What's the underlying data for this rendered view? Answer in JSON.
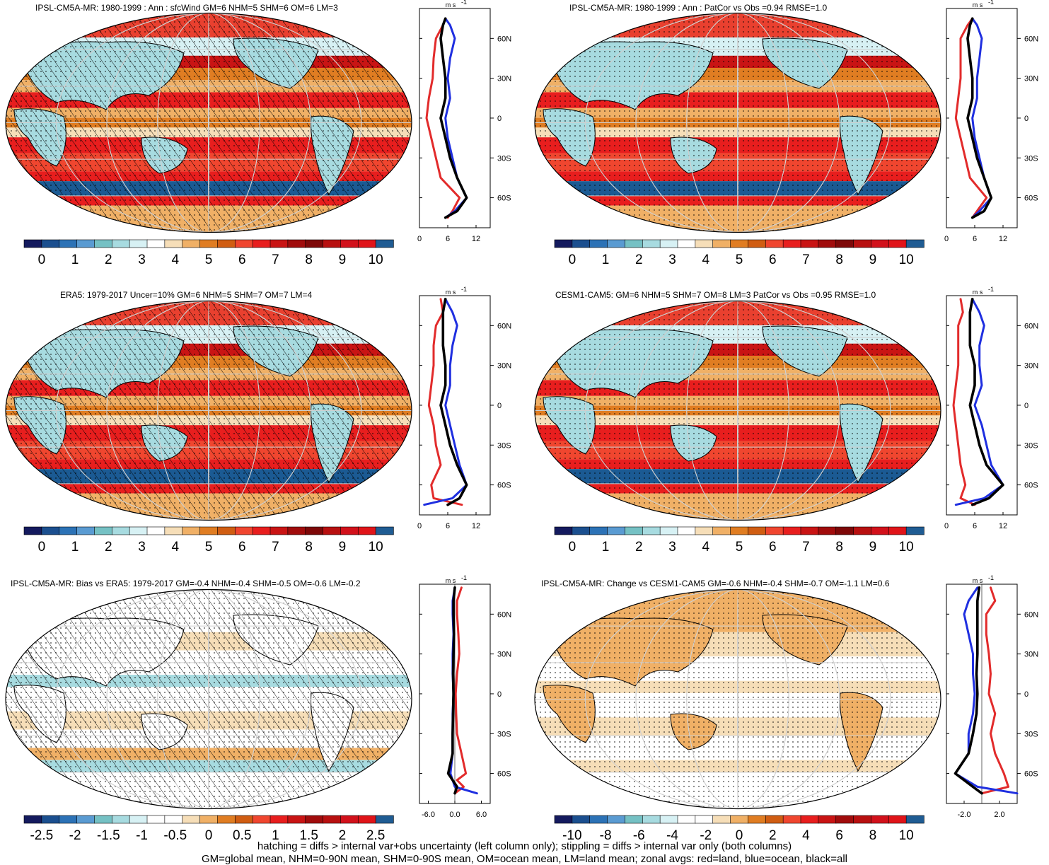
{
  "colors": {
    "wind_scale": [
      "#141a5e",
      "#1b4f8f",
      "#2c72b6",
      "#5a9bd2",
      "#75c1c4",
      "#a7dbe0",
      "#d7f1f4",
      "#ffffff",
      "#f6deb8",
      "#f0b066",
      "#e07d22",
      "#d05d12",
      "#f0462f",
      "#e81e1e",
      "#c91414",
      "#a10c0c",
      "#7e0808",
      "#b81010",
      "#d2111b",
      "#e01419",
      "#1f5c93"
    ],
    "diff_scale": [
      "#141a5e",
      "#1b4f8f",
      "#2c72b6",
      "#5a9bd2",
      "#75c1c4",
      "#a7dbe0",
      "#d7f1f4",
      "#ffffff",
      "#ffffff",
      "#f6deb8",
      "#f0b066",
      "#e07d22",
      "#d05d12",
      "#f0462f",
      "#e81e1e",
      "#c91414",
      "#a10c0c",
      "#b81010",
      "#d2111b",
      "#e01419",
      "#1f5c93"
    ],
    "land": "#e22b2b",
    "ocean": "#1f2fe0",
    "all": "#000000"
  },
  "panels": [
    {
      "title": "IPSL-CM5A-MR: 1980-1999 : Ann : sfcWind GM=6 NHM=5 SHM=6 OM=6 LM=3",
      "unit": "m s",
      "unit_sup": "-1",
      "colorbar_labels": [
        "0",
        "1",
        "2",
        "3",
        "4",
        "5",
        "6",
        "7",
        "8",
        "9",
        "10"
      ],
      "profile_ticks": [
        "0",
        "6",
        "12"
      ],
      "lat_labels": [
        "60N",
        "30N",
        "0",
        "30S",
        "60S"
      ],
      "hatched": true,
      "map_style": "clim",
      "chart_data": {
        "type": "line",
        "title": "IPSL-CM5A-MR: 1980-1999 : Ann : sfcWind GM=6 NHM=5 SHM=6 OM=6 LM=3",
        "xlim": [
          0,
          15
        ],
        "lat": [
          75,
          70,
          60,
          45,
          30,
          15,
          0,
          -15,
          -30,
          -45,
          -60,
          -70,
          -75
        ],
        "series": [
          {
            "values": [
              5.5,
              5.0,
              3.5,
              3.0,
              2.8,
              2.0,
              1.5,
              2.5,
              3.5,
              4.5,
              8.5,
              7.0,
              6.0
            ]
          },
          {
            "values": [
              5.5,
              6.5,
              7.5,
              6.5,
              6.0,
              6.5,
              5.5,
              6.0,
              7.0,
              8.0,
              10.0,
              7.5,
              5.5
            ]
          },
          {
            "values": [
              5.5,
              5.0,
              4.5,
              5.0,
              5.5,
              5.5,
              4.5,
              5.5,
              6.5,
              8.0,
              10.0,
              8.0,
              5.5
            ]
          }
        ]
      }
    },
    {
      "title": "IPSL-CM5A-MR: 1980-1999 : Ann : PatCor vs Obs =0.94 RMSE=1.0",
      "unit": "m s",
      "unit_sup": "-1",
      "colorbar_labels": [
        "0",
        "1",
        "2",
        "3",
        "4",
        "5",
        "6",
        "7",
        "8",
        "9",
        "10"
      ],
      "profile_ticks": [
        "0",
        "6",
        "12"
      ],
      "lat_labels": [
        "60N",
        "30N",
        "0",
        "30S",
        "60S"
      ],
      "hatched": false,
      "map_style": "clim",
      "chart_data": {
        "type": "line",
        "title": "IPSL-CM5A-MR: 1980-1999 : Ann : PatCor vs Obs =0.94 RMSE=1.0",
        "xlim": [
          0,
          15
        ],
        "lat": [
          75,
          70,
          60,
          45,
          30,
          15,
          0,
          -15,
          -30,
          -45,
          -60,
          -70,
          -75
        ],
        "series": [
          {
            "values": [
              5.5,
              4.5,
              3.0,
              3.0,
              3.0,
              2.5,
              2.0,
              3.0,
              4.0,
              5.0,
              8.5,
              6.5,
              5.5
            ]
          },
          {
            "values": [
              5.5,
              6.5,
              7.5,
              7.0,
              6.5,
              6.5,
              5.5,
              6.0,
              7.0,
              8.0,
              9.5,
              7.0,
              5.5
            ]
          },
          {
            "values": [
              5.5,
              5.0,
              4.5,
              5.0,
              5.5,
              5.5,
              4.5,
              5.5,
              6.5,
              8.0,
              9.5,
              8.0,
              5.5
            ]
          }
        ]
      }
    },
    {
      "title": "ERA5: 1979-2017 Uncer=10% GM=6 NHM=5 SHM=7 OM=7 LM=4",
      "unit": "m s",
      "unit_sup": "-1",
      "colorbar_labels": [
        "0",
        "1",
        "2",
        "3",
        "4",
        "5",
        "6",
        "7",
        "8",
        "9",
        "10"
      ],
      "profile_ticks": [
        "0",
        "6",
        "12"
      ],
      "lat_labels": [
        "60N",
        "30N",
        "0",
        "30S",
        "60S"
      ],
      "hatched": true,
      "map_style": "clim",
      "chart_data": {
        "type": "line",
        "title": "ERA5: 1979-2017 Uncer=10% GM=6 NHM=5 SHM=7 OM=7 LM=4",
        "xlim": [
          0,
          15
        ],
        "lat": [
          80,
          70,
          60,
          45,
          30,
          15,
          0,
          -15,
          -30,
          -45,
          -60,
          -70,
          -75
        ],
        "series": [
          {
            "values": [
              4.5,
              5.0,
              3.5,
              3.0,
              3.0,
              2.5,
              2.0,
              3.0,
              3.5,
              4.5,
              2.5,
              3.0,
              9.0
            ]
          },
          {
            "values": [
              5.5,
              7.0,
              8.0,
              7.0,
              6.5,
              6.5,
              5.5,
              6.5,
              7.5,
              8.5,
              10.0,
              7.0,
              1.0
            ]
          },
          {
            "values": [
              5.5,
              5.0,
              5.0,
              5.0,
              5.5,
              5.5,
              4.5,
              5.5,
              6.5,
              8.0,
              10.0,
              8.5,
              6.0
            ]
          }
        ]
      }
    },
    {
      "title": "CESM1-CAM5: GM=6 NHM=5 SHM=7 OM=8 LM=3 PatCor vs Obs =0.95 RMSE=1.0",
      "unit": "m s",
      "unit_sup": "-1",
      "colorbar_labels": [
        "0",
        "1",
        "2",
        "3",
        "4",
        "5",
        "6",
        "7",
        "8",
        "9",
        "10"
      ],
      "profile_ticks": [
        "0",
        "6",
        "12"
      ],
      "lat_labels": [
        "60N",
        "30N",
        "0",
        "30S",
        "60S"
      ],
      "hatched": false,
      "map_style": "clim",
      "chart_data": {
        "type": "line",
        "title": "CESM1-CAM5: GM=6 NHM=5 SHM=7 OM=8 LM=3 PatCor vs Obs =0.95 RMSE=1.0",
        "xlim": [
          0,
          15
        ],
        "lat": [
          80,
          70,
          60,
          45,
          30,
          15,
          0,
          -15,
          -30,
          -45,
          -60,
          -70,
          -75
        ],
        "series": [
          {
            "values": [
              3.0,
              3.5,
              2.5,
              2.5,
              2.5,
              2.0,
              1.5,
              2.0,
              2.5,
              3.0,
              4.0,
              3.0,
              6.0
            ]
          },
          {
            "values": [
              5.5,
              7.0,
              8.0,
              7.0,
              7.0,
              7.5,
              6.0,
              7.5,
              8.5,
              9.5,
              12.0,
              8.0,
              2.0
            ]
          },
          {
            "values": [
              5.5,
              5.0,
              5.0,
              5.0,
              6.0,
              6.0,
              5.0,
              6.0,
              7.0,
              8.5,
              12.0,
              9.0,
              5.5
            ]
          }
        ]
      }
    },
    {
      "title": "IPSL-CM5A-MR: Bias vs ERA5: 1979-2017 GM=-0.4 NHM=-0.4 SHM=-0.5 OM=-0.6 LM=-0.2",
      "unit": "m s",
      "unit_sup": "-1",
      "colorbar_labels": [
        "-2.5",
        "-2",
        "-1.5",
        "-1",
        "-0.5",
        "0",
        "0.5",
        "1",
        "1.5",
        "2",
        "2.5"
      ],
      "profile_ticks": [
        "-6.0",
        "0.0",
        "6.0"
      ],
      "lat_labels": [
        "60N",
        "30N",
        "0",
        "30S",
        "60S"
      ],
      "hatched": true,
      "map_style": "diff",
      "chart_data": {
        "type": "line",
        "title": "IPSL-CM5A-MR: Bias vs ERA5: 1979-2017 GM=-0.4 NHM=-0.4 SHM=-0.5 OM=-0.6 LM=-0.2",
        "xlim": [
          -8,
          8
        ],
        "lat": [
          80,
          70,
          60,
          45,
          30,
          15,
          0,
          -15,
          -30,
          -45,
          -60,
          -65,
          -70,
          -75
        ],
        "series": [
          {
            "values": [
              1.5,
              0.5,
              0.5,
              0.8,
              1.0,
              0.5,
              0.2,
              0.3,
              0.5,
              1.5,
              2.5,
              0.5,
              2.0,
              0.0
            ]
          },
          {
            "values": [
              0.0,
              -0.5,
              -0.5,
              -0.3,
              -0.5,
              -0.5,
              -0.3,
              -0.5,
              -0.5,
              -0.5,
              -1.0,
              -0.5,
              0.0,
              5.0
            ]
          },
          {
            "values": [
              0.0,
              -0.3,
              -0.3,
              -0.2,
              -0.3,
              -0.4,
              -0.3,
              -0.4,
              -0.5,
              -0.5,
              -1.5,
              -0.5,
              0.5,
              0.0
            ]
          }
        ]
      }
    },
    {
      "title": "IPSL-CM5A-MR: Change vs CESM1-CAM5 GM=-0.6 NHM=-0.4 SHM=-0.7 OM=-1.1 LM=0.6",
      "unit": "m s",
      "unit_sup": "-1",
      "colorbar_labels": [
        "-10",
        "-8",
        "-6",
        "-4",
        "-2",
        "0",
        "2",
        "4",
        "6",
        "8",
        "10"
      ],
      "profile_ticks": [
        "-2.0",
        "2.0"
      ],
      "lat_labels": [
        "60N",
        "30N",
        "0",
        "30S",
        "60S"
      ],
      "hatched": false,
      "map_style": "change",
      "chart_data": {
        "type": "line",
        "title": "IPSL-CM5A-MR: Change vs CESM1-CAM5 GM=-0.6 NHM=-0.4 SHM=-0.7 OM=-1.1 LM=0.6",
        "xlim": [
          -4,
          4
        ],
        "lat": [
          80,
          70,
          60,
          45,
          30,
          15,
          0,
          -15,
          -30,
          -45,
          -60,
          -70,
          -75
        ],
        "series": [
          {
            "values": [
              1.0,
              1.5,
              0.5,
              0.5,
              0.8,
              1.0,
              0.8,
              1.5,
              1.0,
              1.5,
              2.5,
              3.0,
              0.0
            ]
          },
          {
            "values": [
              -0.5,
              -1.5,
              -2.0,
              -1.5,
              -1.0,
              -1.0,
              -0.8,
              -1.0,
              -1.5,
              -1.5,
              -3.0,
              -0.5,
              4.0
            ]
          },
          {
            "values": [
              -0.3,
              -0.5,
              -0.5,
              -0.5,
              -0.5,
              -0.6,
              -0.5,
              -0.6,
              -1.0,
              -1.5,
              -3.0,
              -1.0,
              0.0
            ]
          }
        ]
      }
    }
  ],
  "footer": {
    "line1": "hatching = diffs > internal var+obs uncertainty (left column only); stippling = diffs > internal var only (both columns)",
    "line2": "GM=global mean, NHM=0-90N mean, SHM=0-90S mean, OM=ocean mean, LM=land mean; zonal avgs: red=land, blue=ocean, black=all"
  }
}
